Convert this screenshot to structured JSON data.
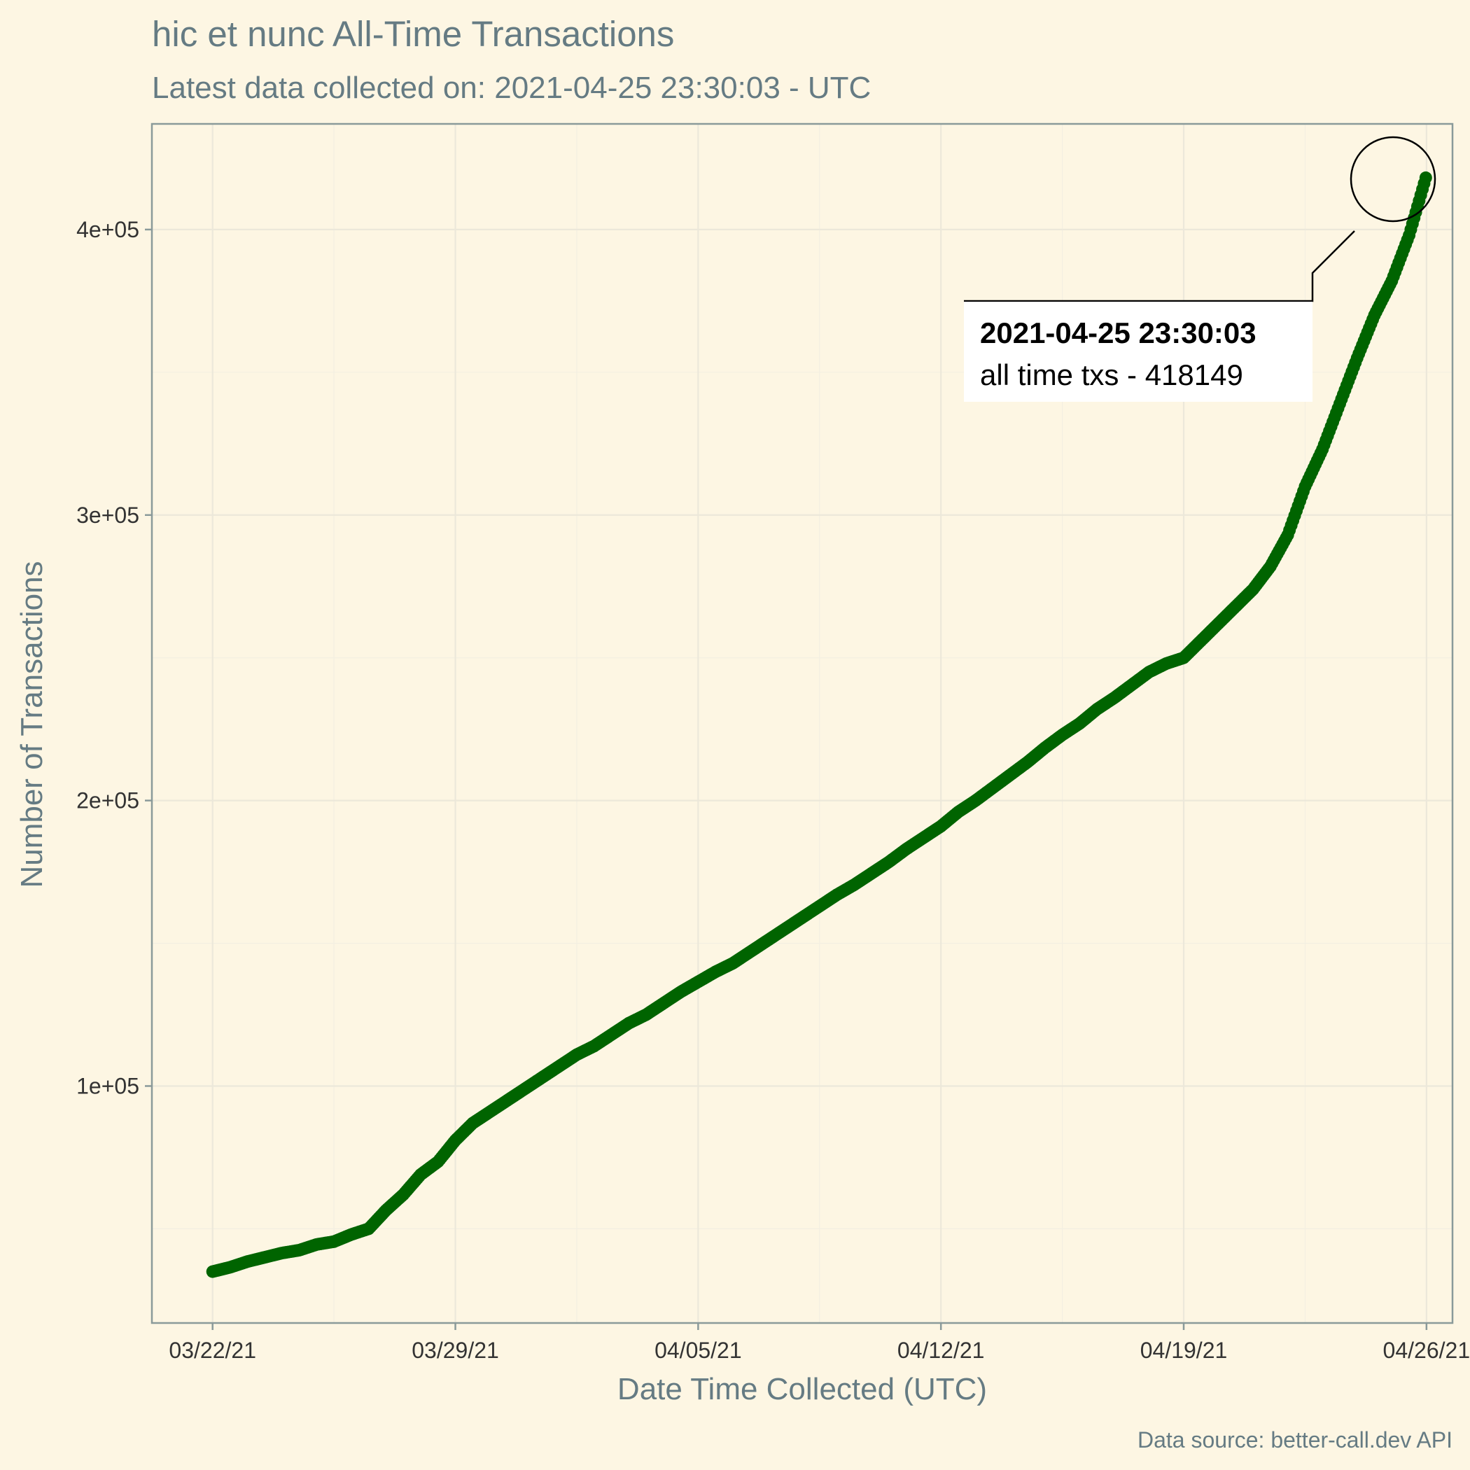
{
  "chart_data": {
    "type": "scatter",
    "title": "hic et nunc All-Time Transactions",
    "subtitle": "Latest data collected on: 2021-04-25 23:30:03  - UTC",
    "xlabel": "Date Time Collected (UTC)",
    "ylabel": "Number of Transactions",
    "caption": "Data source: better-call.dev API",
    "x_ticks": [
      "03/22/21",
      "03/29/21",
      "04/05/21",
      "04/12/21",
      "04/19/21",
      "04/26/21"
    ],
    "y_ticks": [
      "1e+05",
      "2e+05",
      "3e+05",
      "4e+05"
    ],
    "xlim": [
      "2021-03-20T06:00:00",
      "2021-04-26T18:00:00"
    ],
    "ylim": [
      17000,
      437000
    ],
    "grid": true,
    "colors": {
      "series": "#006400",
      "background": "#fdf6e3",
      "text": "#657b83"
    },
    "series": [
      {
        "x": [
          "2021-03-22T00:00",
          "2021-03-22T12:00",
          "2021-03-23T00:00",
          "2021-03-23T12:00",
          "2021-03-24T00:00",
          "2021-03-24T12:00",
          "2021-03-25T00:00",
          "2021-03-25T12:00",
          "2021-03-26T00:00",
          "2021-03-26T12:00",
          "2021-03-27T00:00",
          "2021-03-27T12:00",
          "2021-03-28T00:00",
          "2021-03-28T12:00",
          "2021-03-29T00:00",
          "2021-03-29T12:00",
          "2021-03-30T00:00",
          "2021-03-30T12:00",
          "2021-03-31T00:00",
          "2021-03-31T12:00",
          "2021-04-01T00:00",
          "2021-04-01T12:00",
          "2021-04-02T00:00",
          "2021-04-02T12:00",
          "2021-04-03T00:00",
          "2021-04-03T12:00",
          "2021-04-04T00:00",
          "2021-04-04T12:00",
          "2021-04-05T00:00",
          "2021-04-05T12:00",
          "2021-04-06T00:00",
          "2021-04-06T12:00",
          "2021-04-07T00:00",
          "2021-04-07T12:00",
          "2021-04-08T00:00",
          "2021-04-08T12:00",
          "2021-04-09T00:00",
          "2021-04-09T12:00",
          "2021-04-10T00:00",
          "2021-04-10T12:00",
          "2021-04-11T00:00",
          "2021-04-11T12:00",
          "2021-04-12T00:00",
          "2021-04-12T12:00",
          "2021-04-13T00:00",
          "2021-04-13T12:00",
          "2021-04-14T00:00",
          "2021-04-14T12:00",
          "2021-04-15T00:00",
          "2021-04-15T12:00",
          "2021-04-16T00:00",
          "2021-04-16T12:00",
          "2021-04-17T00:00",
          "2021-04-17T12:00",
          "2021-04-18T00:00",
          "2021-04-18T12:00",
          "2021-04-19T00:00",
          "2021-04-19T12:00",
          "2021-04-20T00:00",
          "2021-04-20T12:00",
          "2021-04-21T00:00",
          "2021-04-21T12:00",
          "2021-04-22T00:00",
          "2021-04-22T12:00",
          "2021-04-23T00:00",
          "2021-04-23T12:00",
          "2021-04-24T00:00",
          "2021-04-24T12:00",
          "2021-04-25T00:00",
          "2021-04-25T12:00",
          "2021-04-25T23:30:03"
        ],
        "y": [
          35000,
          36500,
          38500,
          40000,
          41500,
          42500,
          44500,
          45500,
          48000,
          50000,
          56500,
          62000,
          69000,
          73500,
          81000,
          87000,
          91000,
          95000,
          99000,
          103000,
          107000,
          111000,
          114000,
          118000,
          122000,
          125000,
          129000,
          133000,
          136500,
          140000,
          143000,
          147000,
          151000,
          155000,
          159000,
          163000,
          167000,
          170500,
          174500,
          178500,
          183000,
          187000,
          191000,
          196000,
          200000,
          204500,
          209000,
          213500,
          218500,
          223000,
          227000,
          232000,
          236000,
          240500,
          245000,
          248000,
          250000,
          256000,
          262000,
          268000,
          274000,
          282000,
          293000,
          310000,
          323000,
          339000,
          355000,
          370000,
          382000,
          398000,
          418149
        ]
      }
    ],
    "annotation": {
      "label_bold": "2021-04-25 23:30:03",
      "label": "all time txs - 418149"
    }
  }
}
